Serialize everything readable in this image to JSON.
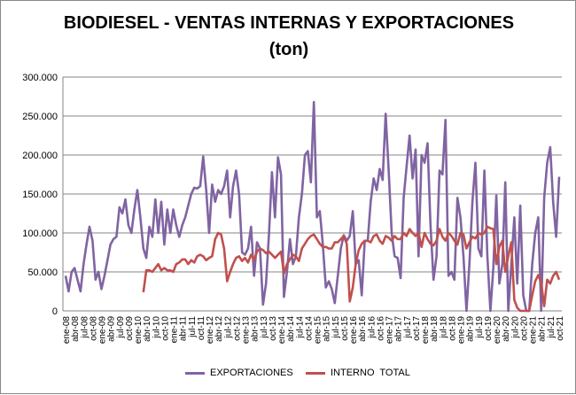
{
  "chart_data": {
    "type": "line",
    "title": "BIODIESEL - VENTAS INTERNAS Y EXPORTACIONES",
    "subtitle": "(ton)",
    "xlabel": "",
    "ylabel": "",
    "ylim": [
      0,
      300000
    ],
    "yticks": [
      "0",
      "50.000",
      "100.000",
      "150.000",
      "200.000",
      "250.000",
      "300.000"
    ],
    "grid": true,
    "legend": "bottom",
    "start": "ene-08",
    "xticks": [
      "ene-08",
      "abr-08",
      "jul-08",
      "oct-08",
      "ene-09",
      "abr-09",
      "jul-09",
      "oct-09",
      "ene-10",
      "abr-10",
      "jul-10",
      "oct-10",
      "ene-11",
      "abr-11",
      "jul-11",
      "oct-11",
      "ene-12",
      "abr-12",
      "jul-12",
      "oct-12",
      "ene-13",
      "abr-13",
      "jul-13",
      "oct-13",
      "ene-14",
      "abr-14",
      "jul-14",
      "oct-14",
      "ene-15",
      "abr-15",
      "jul-15",
      "oct-15",
      "ene-16",
      "abr-16",
      "jul-16",
      "oct-16",
      "ene-17",
      "abr-17",
      "jul-17",
      "oct-17",
      "ene-18",
      "abr-18",
      "jul-18",
      "oct-18",
      "ene-19",
      "abr-19",
      "jul-19",
      "oct-19",
      "ene-20",
      "abr-20",
      "jul-20",
      "oct-20",
      "ene-21",
      "abr-21",
      "jul-21",
      "oct-21"
    ],
    "series": [
      {
        "name": "EXPORTACIONES",
        "color": "#8064A2",
        "values": [
          45000,
          25000,
          50000,
          55000,
          40000,
          25000,
          60000,
          85000,
          108000,
          90000,
          40000,
          50000,
          28000,
          45000,
          65000,
          85000,
          92000,
          95000,
          133000,
          125000,
          143000,
          110000,
          100000,
          130000,
          155000,
          120000,
          80000,
          68000,
          108000,
          95000,
          143000,
          100000,
          140000,
          85000,
          130000,
          100000,
          130000,
          110000,
          95000,
          110000,
          120000,
          135000,
          150000,
          158000,
          157000,
          160000,
          198000,
          155000,
          100000,
          162000,
          140000,
          155000,
          150000,
          160000,
          180000,
          120000,
          160000,
          180000,
          150000,
          75000,
          72000,
          80000,
          108000,
          45000,
          88000,
          80000,
          8000,
          35000,
          100000,
          178000,
          120000,
          197000,
          175000,
          18000,
          50000,
          92000,
          60000,
          70000,
          120000,
          150000,
          200000,
          205000,
          165000,
          268000,
          120000,
          128000,
          85000,
          30000,
          38000,
          28000,
          10000,
          45000,
          80000,
          97000,
          90000,
          96000,
          128000,
          60000,
          65000,
          20000,
          90000,
          90000,
          140000,
          170000,
          155000,
          182000,
          168000,
          253000,
          180000,
          100000,
          70000,
          68000,
          42000,
          145000,
          185000,
          225000,
          170000,
          207000,
          70000,
          200000,
          190000,
          215000,
          110000,
          40000,
          70000,
          180000,
          175000,
          245000,
          45000,
          50000,
          40000,
          145000,
          120000,
          70000,
          0,
          60000,
          140000,
          190000,
          80000,
          70000,
          180000,
          70000,
          0,
          55000,
          148000,
          35000,
          60000,
          165000,
          0,
          60000,
          120000,
          35000,
          135000,
          20000,
          0,
          0,
          60000,
          100000,
          120000,
          0,
          145000,
          190000,
          210000,
          140000,
          95000,
          172000
        ]
      },
      {
        "name": "INTERNO  TOTAL",
        "color": "#C0504D",
        "values": [
          null,
          null,
          null,
          null,
          null,
          null,
          null,
          null,
          null,
          null,
          null,
          null,
          null,
          null,
          null,
          null,
          null,
          null,
          null,
          null,
          null,
          null,
          null,
          null,
          null,
          null,
          24000,
          52000,
          52000,
          50000,
          55000,
          60000,
          52000,
          55000,
          52000,
          52000,
          50000,
          60000,
          62000,
          66000,
          66000,
          60000,
          65000,
          62000,
          70000,
          72000,
          70000,
          65000,
          68000,
          70000,
          92000,
          100000,
          98000,
          80000,
          38000,
          50000,
          60000,
          68000,
          70000,
          64000,
          68000,
          62000,
          72000,
          65000,
          76000,
          80000,
          78000,
          74000,
          76000,
          72000,
          68000,
          72000,
          76000,
          48000,
          60000,
          66000,
          72000,
          70000,
          64000,
          80000,
          86000,
          92000,
          96000,
          98000,
          92000,
          86000,
          82000,
          82000,
          80000,
          80000,
          88000,
          88000,
          92000,
          96000,
          86000,
          12000,
          30000,
          60000,
          78000,
          86000,
          90000,
          90000,
          88000,
          96000,
          98000,
          90000,
          86000,
          96000,
          94000,
          90000,
          96000,
          92000,
          92000,
          100000,
          96000,
          105000,
          100000,
          96000,
          100000,
          82000,
          100000,
          92000,
          86000,
          84000,
          90000,
          105000,
          95000,
          90000,
          100000,
          96000,
          90000,
          85000,
          100000,
          98000,
          80000,
          88000,
          95000,
          93000,
          100000,
          98000,
          100000,
          108000,
          106000,
          105000,
          60000,
          82000,
          90000,
          50000,
          70000,
          88000,
          14000,
          4000,
          0,
          0,
          0,
          0,
          20000,
          38000,
          46000,
          36000,
          6000,
          40000,
          35000,
          45000,
          50000,
          40000
        ]
      }
    ]
  }
}
